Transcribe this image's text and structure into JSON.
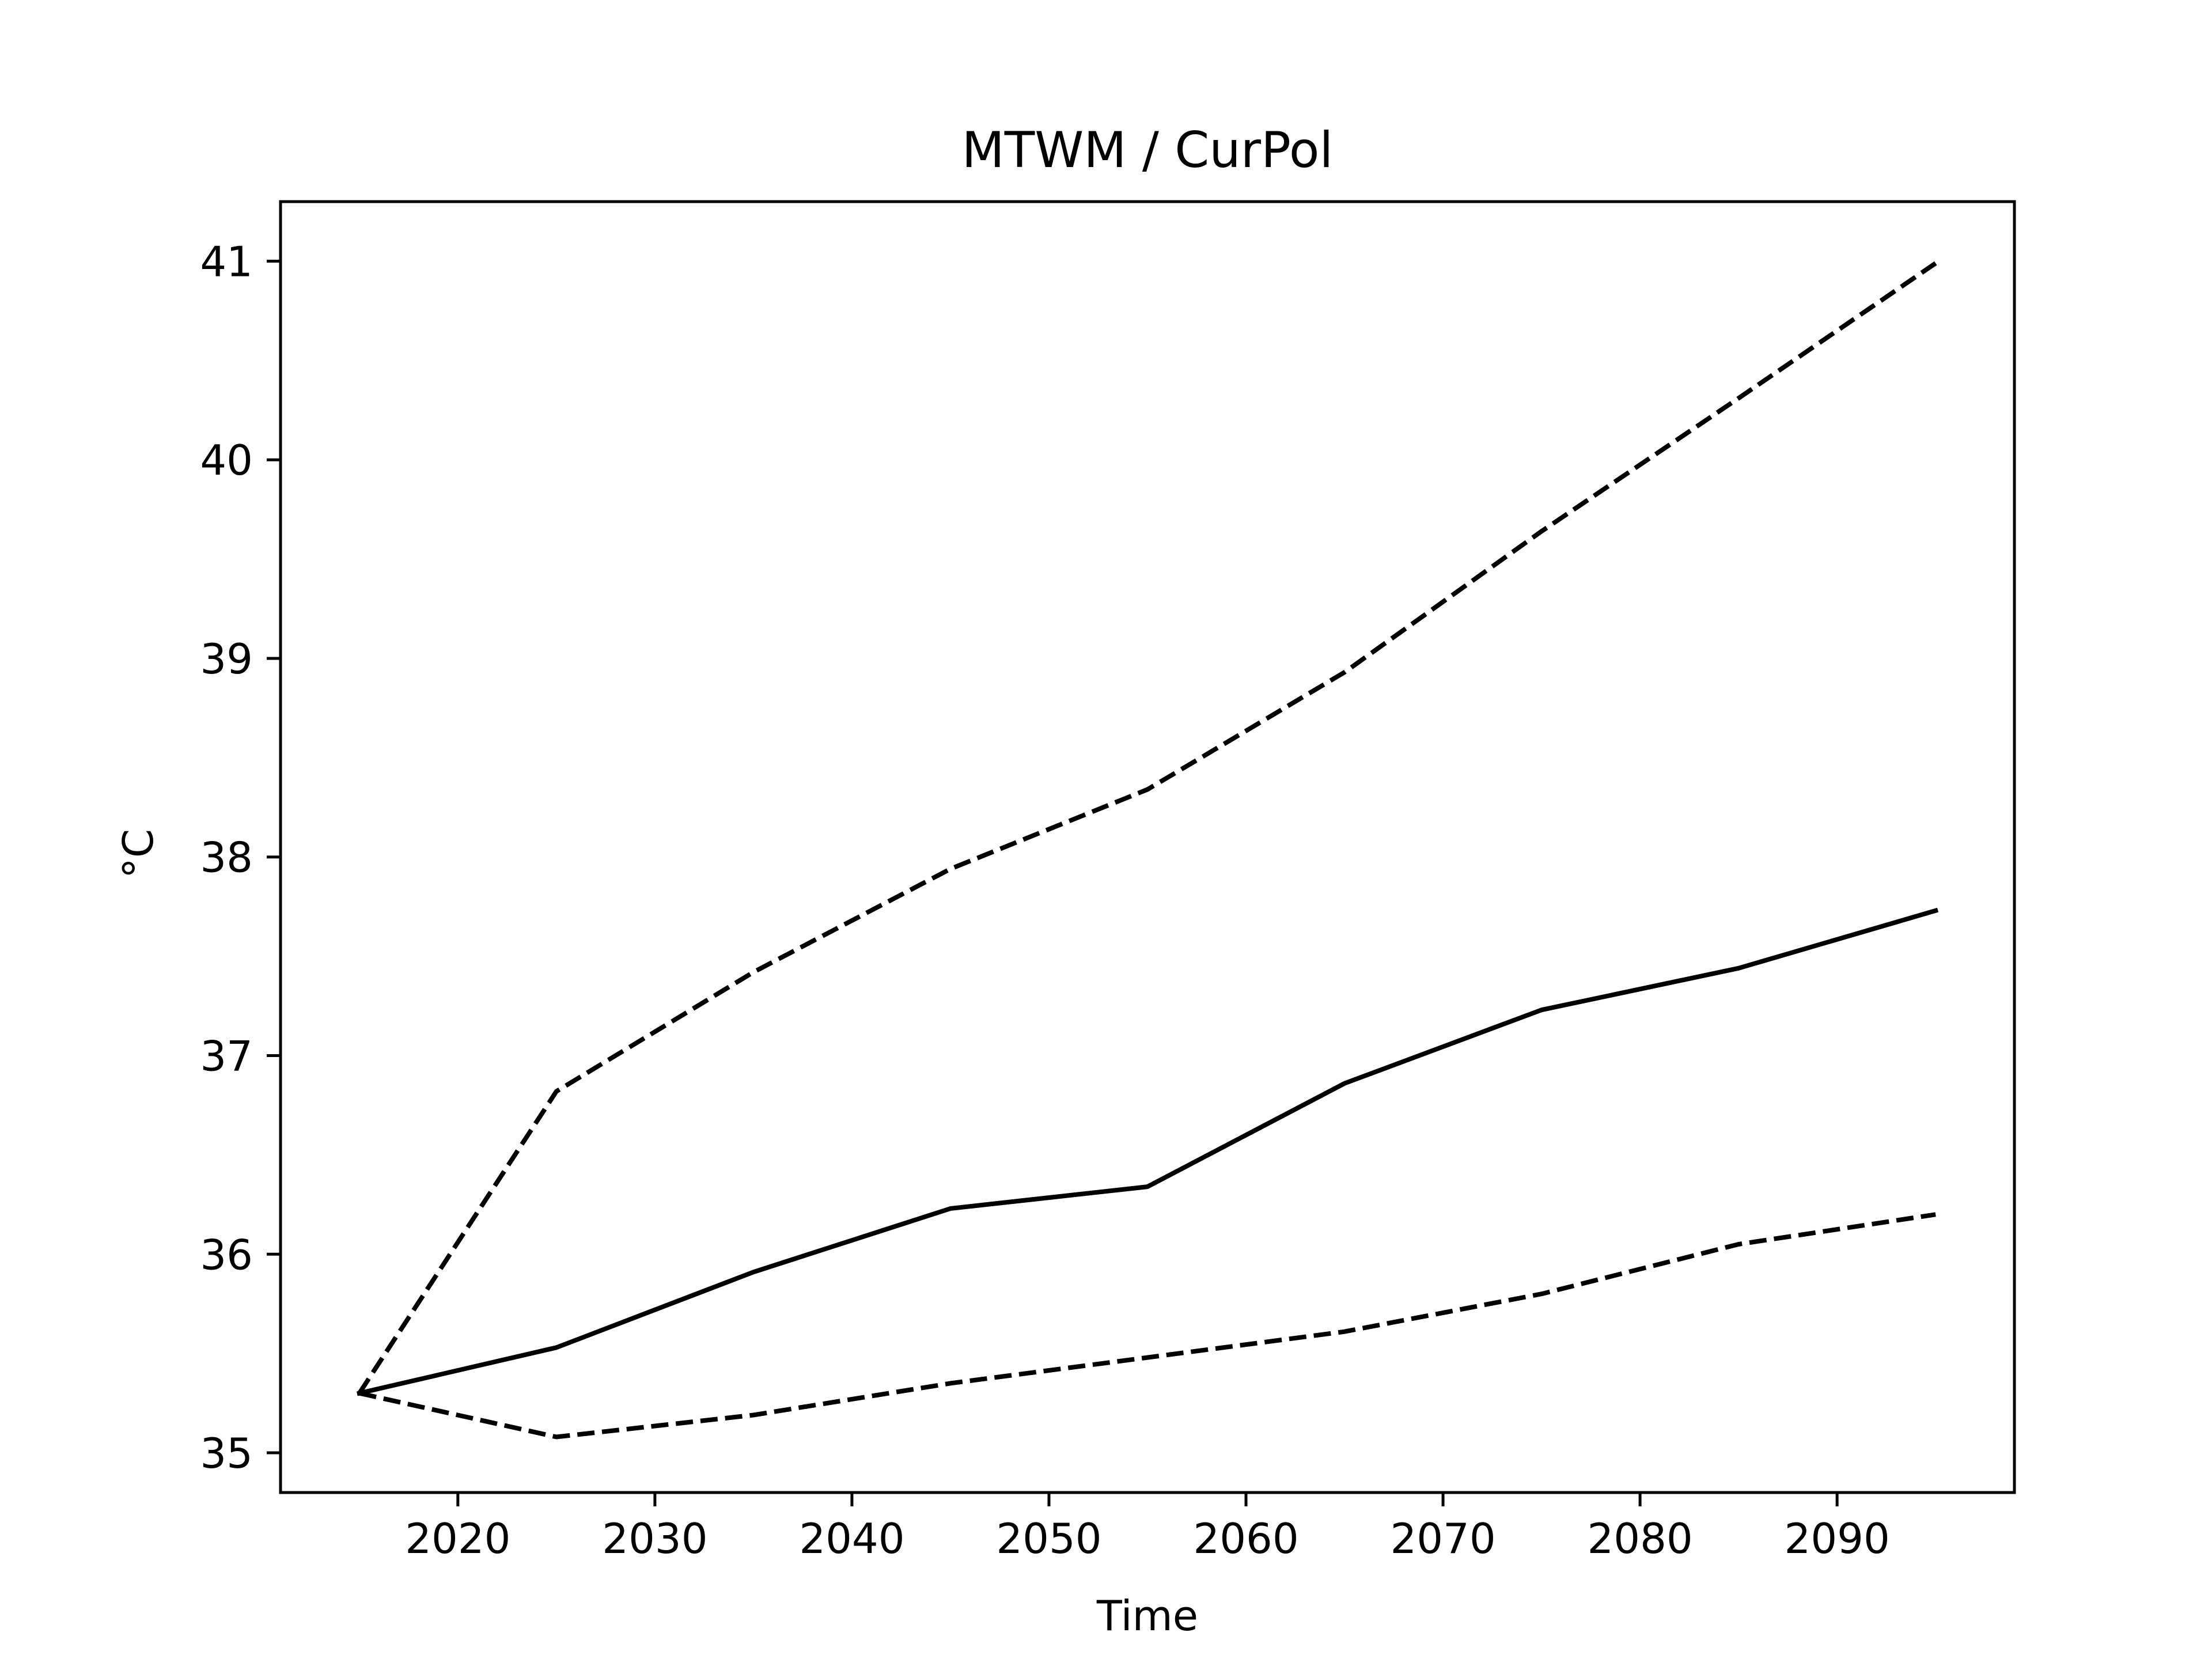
{
  "chart_data": {
    "type": "line",
    "title": "MTWM / CurPol",
    "xlabel": "Time",
    "ylabel": "°C",
    "xlim": [
      2011,
      2099
    ],
    "ylim": [
      34.8,
      41.3
    ],
    "xticks": [
      2020,
      2030,
      2040,
      2050,
      2060,
      2070,
      2080,
      2090
    ],
    "yticks": [
      35,
      36,
      37,
      38,
      39,
      40,
      41
    ],
    "grid": false,
    "x": [
      2015,
      2025,
      2035,
      2045,
      2055,
      2065,
      2075,
      2085,
      2095
    ],
    "series": [
      {
        "style": "solid",
        "color": "#000000",
        "values": [
          35.3,
          35.53,
          35.91,
          36.23,
          36.34,
          36.86,
          37.23,
          37.44,
          37.73
        ]
      },
      {
        "style": "dashed",
        "color": "#000000",
        "values": [
          35.3,
          36.82,
          37.42,
          37.94,
          38.34,
          38.93,
          39.64,
          40.31,
          40.99
        ]
      },
      {
        "style": "dashed",
        "color": "#000000",
        "values": [
          35.3,
          35.08,
          35.19,
          35.35,
          35.48,
          35.61,
          35.8,
          36.05,
          36.2
        ]
      }
    ]
  }
}
